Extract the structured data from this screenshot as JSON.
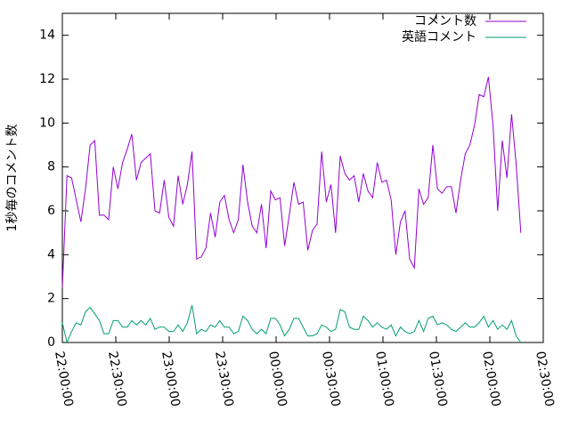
{
  "chart_data": {
    "type": "line",
    "ylabel": "1秒毎のコメント数",
    "x": [
      0,
      2.6,
      5.2,
      7.8,
      10.4,
      13,
      15.6,
      18.2,
      20.8,
      23.4,
      26,
      28.6,
      31.2,
      33.8,
      36.4,
      39,
      41.6,
      44.2,
      46.8,
      49.4,
      52,
      54.6,
      57.2,
      59.8,
      62.4,
      65,
      67.6,
      70.2,
      72.8,
      75.4,
      78,
      80.6,
      83.2,
      85.8,
      88.4,
      91,
      93.6,
      96.2,
      98.8,
      101.4,
      104,
      106.6,
      109.2,
      111.8,
      114.4,
      117,
      119.6,
      122.2,
      124.8,
      127.4,
      130,
      132.6,
      135.2,
      137.8,
      140.4,
      143,
      145.6,
      148.2,
      150.8,
      153.4,
      156,
      158.6,
      161.2,
      163.8,
      166.4,
      169,
      171.6,
      174.2,
      176.8,
      179.4,
      182,
      184.6,
      187.2,
      189.8,
      192.4,
      195,
      197.6,
      200.2,
      202.8,
      205.4,
      208,
      210.6,
      213.2,
      215.8,
      218.4,
      221,
      223.6,
      226.2,
      228.8,
      231.4,
      234,
      236.6,
      239.2,
      241.8,
      244.4,
      247,
      249.6,
      252.2,
      254.8,
      257.4
    ],
    "series": [
      {
        "name": "コメント数",
        "color": "#9400d3",
        "values": [
          2.5,
          7.6,
          7.5,
          6.5,
          5.5,
          7.0,
          9.0,
          9.2,
          5.8,
          5.8,
          5.6,
          8.0,
          7.0,
          8.2,
          8.8,
          9.5,
          7.4,
          8.2,
          8.4,
          8.6,
          6.0,
          5.9,
          7.4,
          5.7,
          5.3,
          7.6,
          6.3,
          7.2,
          8.7,
          3.8,
          3.9,
          4.3,
          5.9,
          4.8,
          6.4,
          6.7,
          5.6,
          5.0,
          5.6,
          8.1,
          6.4,
          5.3,
          5.0,
          6.3,
          4.3,
          6.9,
          6.5,
          6.6,
          4.4,
          5.8,
          7.3,
          6.3,
          6.4,
          4.2,
          5.1,
          5.4,
          8.7,
          6.4,
          7.2,
          5.0,
          8.5,
          7.7,
          7.4,
          7.6,
          6.4,
          7.7,
          6.9,
          6.6,
          8.2,
          7.3,
          7.4,
          6.5,
          4.0,
          5.5,
          6.0,
          3.8,
          3.4,
          7.0,
          6.3,
          6.6,
          9.0,
          7.0,
          6.8,
          7.1,
          7.1,
          5.9,
          7.4,
          8.6,
          9.0,
          9.9,
          11.3,
          11.2,
          12.1,
          9.9,
          6.0,
          9.2,
          7.5,
          10.4,
          8.1,
          5.0
        ]
      },
      {
        "name": "英語コメント",
        "color": "#009e73",
        "values": [
          0.9,
          0.0,
          0.5,
          0.9,
          0.8,
          1.4,
          1.6,
          1.3,
          1.0,
          0.4,
          0.4,
          1.0,
          1.0,
          0.7,
          0.7,
          1.0,
          0.8,
          1.0,
          0.8,
          1.1,
          0.6,
          0.7,
          0.7,
          0.5,
          0.5,
          0.8,
          0.5,
          0.9,
          1.7,
          0.4,
          0.6,
          0.5,
          0.8,
          0.7,
          1.0,
          0.7,
          0.7,
          0.4,
          0.5,
          1.2,
          1.0,
          0.6,
          0.4,
          0.6,
          0.4,
          1.1,
          1.1,
          0.8,
          0.3,
          0.6,
          1.1,
          1.1,
          0.7,
          0.3,
          0.3,
          0.4,
          0.8,
          0.7,
          0.5,
          0.6,
          1.5,
          1.4,
          0.7,
          0.6,
          0.6,
          1.2,
          1.0,
          0.7,
          0.9,
          0.7,
          0.6,
          0.8,
          0.3,
          0.7,
          0.5,
          0.4,
          0.5,
          1.0,
          0.5,
          1.1,
          1.2,
          0.8,
          0.9,
          0.8,
          0.6,
          0.5,
          0.7,
          0.9,
          0.7,
          0.7,
          0.9,
          1.2,
          0.7,
          1.0,
          0.6,
          0.8,
          0.6,
          1.0,
          0.3,
          0.0
        ]
      }
    ],
    "xlim": [
      0,
      270
    ],
    "xticks": [
      {
        "value": 0,
        "label": "22:00:00"
      },
      {
        "value": 30,
        "label": "22:30:00"
      },
      {
        "value": 60,
        "label": "23:00:00"
      },
      {
        "value": 90,
        "label": "23:30:00"
      },
      {
        "value": 120,
        "label": "00:00:00"
      },
      {
        "value": 150,
        "label": "00:30:00"
      },
      {
        "value": 180,
        "label": "01:00:00"
      },
      {
        "value": 210,
        "label": "01:30:00"
      },
      {
        "value": 240,
        "label": "02:00:00"
      },
      {
        "value": 270,
        "label": "02:30:00"
      }
    ],
    "ylim": [
      0,
      15
    ],
    "yticks": [
      0,
      2,
      4,
      6,
      8,
      10,
      12,
      14
    ],
    "legend": "top-right"
  }
}
